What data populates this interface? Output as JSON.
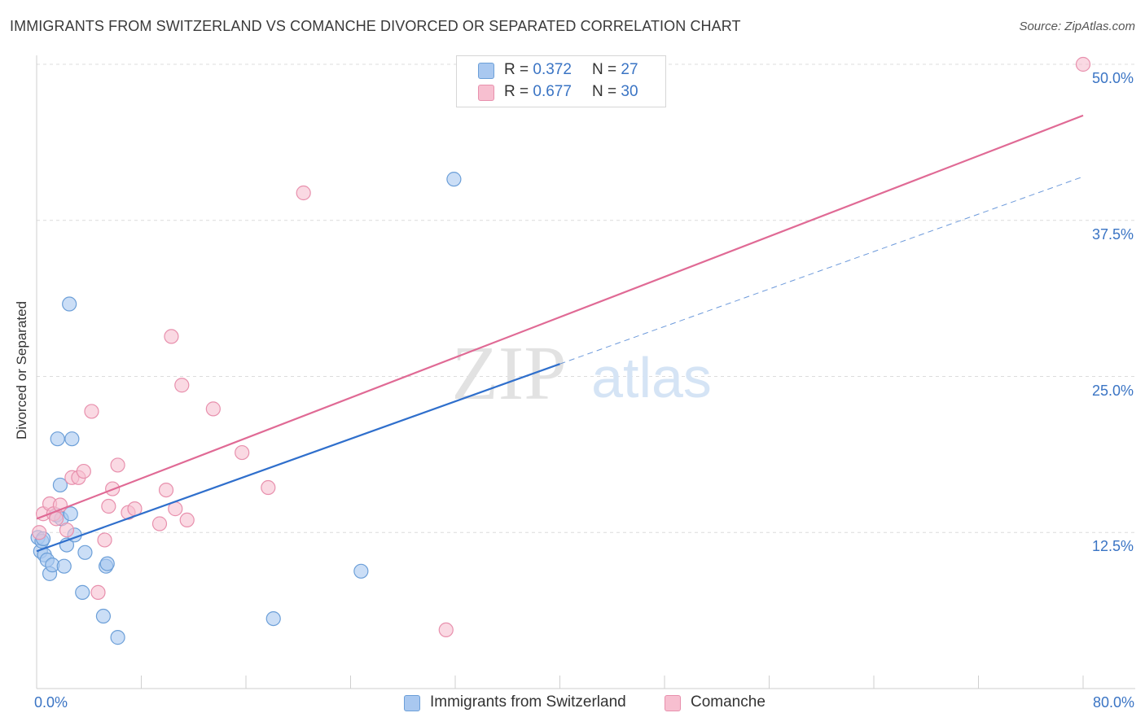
{
  "title": "IMMIGRANTS FROM SWITZERLAND VS COMANCHE DIVORCED OR SEPARATED CORRELATION CHART",
  "source": "Source: ZipAtlas.com",
  "watermark": {
    "zip": "ZIP",
    "atlas": "atlas"
  },
  "legend": {
    "series1": {
      "r_label": "R = ",
      "r_value": "0.372",
      "n_label": "N = ",
      "n_value": "27"
    },
    "series2": {
      "r_label": "R = ",
      "r_value": "0.677",
      "n_label": "N = ",
      "n_value": "30"
    }
  },
  "colors": {
    "blue_fill": "#a9c8f0",
    "blue_stroke": "#6c9fd8",
    "blue_line": "#2f6fcc",
    "pink_fill": "#f7bfd0",
    "pink_stroke": "#e890ad",
    "pink_line": "#e06a95",
    "grid": "#dcdcdc",
    "tick_text": "#3a74c4"
  },
  "chart_data": {
    "type": "scatter",
    "title": "IMMIGRANTS FROM SWITZERLAND VS COMANCHE DIVORCED OR SEPARATED CORRELATION CHART",
    "xlabel": "",
    "ylabel": "Divorced or Separated",
    "xlim": [
      0,
      80
    ],
    "ylim": [
      0,
      51
    ],
    "x_tick_labels": [
      "0.0%",
      "80.0%"
    ],
    "y_ticks": [
      12.5,
      25.0,
      37.5,
      50.0
    ],
    "y_tick_labels": [
      "12.5%",
      "25.0%",
      "37.5%",
      "50.0%"
    ],
    "grid": "horizontal dashed",
    "legend_position": "top-center",
    "series": [
      {
        "name": "Immigrants from Switzerland",
        "color": "#a9c8f0",
        "points": [
          [
            0.1,
            12.1
          ],
          [
            0.3,
            11.0
          ],
          [
            0.4,
            11.8
          ],
          [
            0.5,
            12.0
          ],
          [
            0.6,
            10.7
          ],
          [
            0.8,
            10.3
          ],
          [
            1.0,
            9.2
          ],
          [
            1.2,
            9.9
          ],
          [
            1.5,
            13.9
          ],
          [
            1.6,
            20.0
          ],
          [
            1.8,
            16.3
          ],
          [
            1.9,
            13.6
          ],
          [
            2.1,
            9.8
          ],
          [
            2.3,
            11.5
          ],
          [
            2.5,
            30.8
          ],
          [
            2.6,
            14.0
          ],
          [
            2.7,
            20.0
          ],
          [
            2.9,
            12.3
          ],
          [
            3.5,
            7.7
          ],
          [
            3.7,
            10.9
          ],
          [
            5.1,
            5.8
          ],
          [
            5.3,
            9.8
          ],
          [
            5.4,
            10.0
          ],
          [
            6.2,
            4.1
          ],
          [
            18.1,
            5.6
          ],
          [
            24.8,
            9.4
          ],
          [
            31.9,
            40.8
          ]
        ],
        "trend": {
          "x": [
            0,
            40
          ],
          "y": [
            11.0,
            26.0
          ]
        },
        "trend_extension": {
          "x": [
            40,
            80
          ],
          "y": [
            26.0,
            41.0
          ]
        }
      },
      {
        "name": "Comanche",
        "color": "#f7bfd0",
        "points": [
          [
            0.2,
            12.5
          ],
          [
            0.5,
            14.0
          ],
          [
            1.0,
            14.8
          ],
          [
            1.3,
            14.0
          ],
          [
            1.5,
            13.6
          ],
          [
            1.8,
            14.7
          ],
          [
            2.3,
            12.7
          ],
          [
            2.7,
            16.9
          ],
          [
            3.2,
            16.9
          ],
          [
            3.6,
            17.4
          ],
          [
            4.2,
            22.2
          ],
          [
            4.7,
            7.7
          ],
          [
            5.2,
            11.9
          ],
          [
            5.5,
            14.6
          ],
          [
            5.8,
            16.0
          ],
          [
            6.2,
            17.9
          ],
          [
            7.0,
            14.1
          ],
          [
            7.5,
            14.4
          ],
          [
            9.4,
            13.2
          ],
          [
            9.9,
            15.9
          ],
          [
            10.3,
            28.2
          ],
          [
            10.6,
            14.4
          ],
          [
            11.1,
            24.3
          ],
          [
            11.5,
            13.5
          ],
          [
            13.5,
            22.4
          ],
          [
            15.7,
            18.9
          ],
          [
            17.7,
            16.1
          ],
          [
            20.4,
            39.7
          ],
          [
            31.3,
            4.7
          ],
          [
            80.0,
            50.0
          ]
        ],
        "trend": {
          "x": [
            0,
            80
          ],
          "y": [
            13.6,
            45.9
          ]
        }
      }
    ]
  },
  "bottom_legend": {
    "series1_label": "Immigrants from Switzerland",
    "series2_label": "Comanche"
  }
}
